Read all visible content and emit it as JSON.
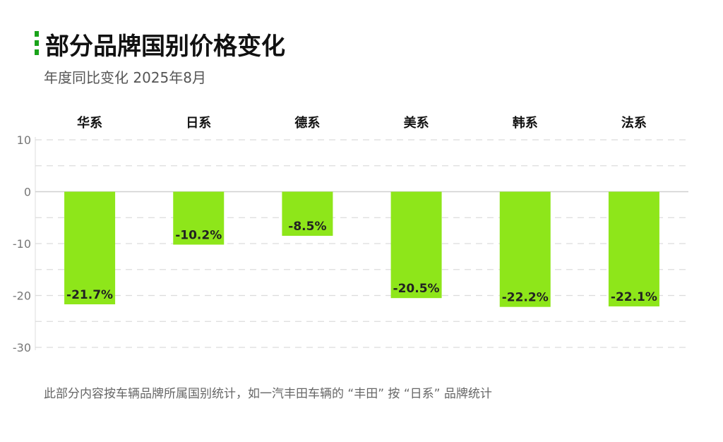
{
  "title": "部分品牌国别价格变化",
  "subtitle": "年度同比变化 2025年8月",
  "footnote": "此部分内容按车辆品牌所属国别统计，如一汽丰田车辆的 “丰田” 按 “日系” 品牌统计",
  "colors": {
    "bar": "#8ee61a",
    "accent": "#1aa31a",
    "grid": "#dcdcdc",
    "zero_line": "#d0d0d0"
  },
  "chart_data": {
    "type": "bar",
    "title": "部分品牌国别价格变化",
    "subtitle": "年度同比变化 2025年8月",
    "categories": [
      "华系",
      "日系",
      "德系",
      "美系",
      "韩系",
      "法系"
    ],
    "values": [
      -21.7,
      -10.2,
      -8.5,
      -20.5,
      -22.2,
      -22.1
    ],
    "data_labels": [
      "-21.7%",
      "-10.2%",
      "-8.5%",
      "-20.5%",
      "-22.2%",
      "-22.1%"
    ],
    "ylim": [
      -30,
      10
    ],
    "yticks": [
      10,
      0,
      -10,
      -20,
      -30
    ],
    "category_labels_position": "top",
    "grid": true,
    "xlabel": "",
    "ylabel": ""
  }
}
